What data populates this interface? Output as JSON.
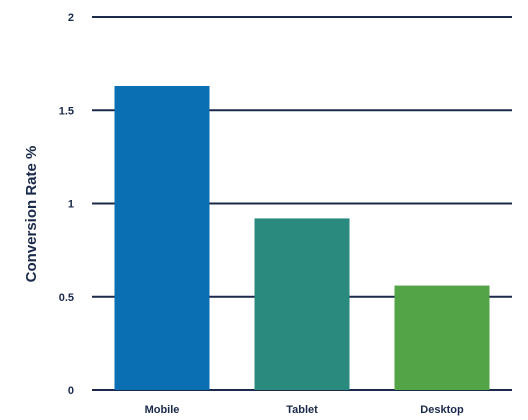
{
  "chart_data": {
    "type": "bar",
    "categories": [
      "Mobile",
      "Tablet",
      "Desktop"
    ],
    "values": [
      1.63,
      0.92,
      0.56
    ],
    "colors": [
      "#0a6fb3",
      "#2a8a7e",
      "#53a347"
    ],
    "title": "",
    "xlabel": "",
    "ylabel": "Conversion Rate %",
    "ylim": [
      0,
      2
    ],
    "yticks": [
      0,
      0.5,
      1,
      1.5,
      2
    ],
    "ytick_labels": [
      "0",
      "0.5",
      "1",
      "1.5",
      "2"
    ],
    "grid": true,
    "legend": "none",
    "gridline_color": "#1b2a4a",
    "text_color": "#1b2a4a"
  }
}
